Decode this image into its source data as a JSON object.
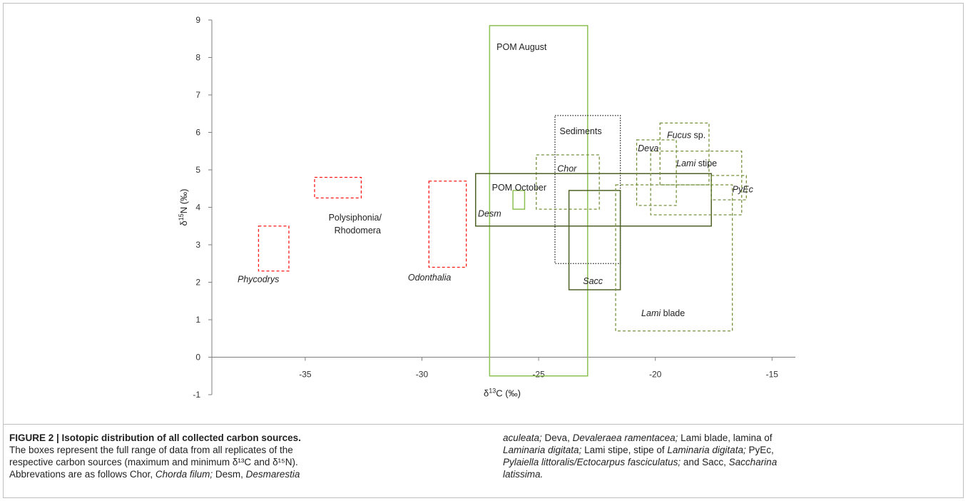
{
  "chart_data": {
    "type": "box-range",
    "xlabel": {
      "base": "δ",
      "sup": "13",
      "rest": "C (‰)"
    },
    "ylabel": {
      "base": "δ",
      "sup": "15",
      "rest": "N  (‰)"
    },
    "xlim": [
      -39,
      -14
    ],
    "ylim": [
      -1,
      9
    ],
    "xticks": [
      -35,
      -30,
      -25,
      -20,
      -15
    ],
    "yticks": [
      -1,
      0,
      1,
      2,
      3,
      4,
      5,
      6,
      7,
      8,
      9
    ],
    "colors": {
      "red": "#ff1a1a",
      "light_green": "#8cc152",
      "olive": "#76923c",
      "dark_green": "#4f6228",
      "black": "#222222"
    },
    "boxes": [
      {
        "label": "Phycodrys",
        "italic": true,
        "x": [
          -37.0,
          -35.7
        ],
        "y": [
          2.3,
          3.5
        ],
        "color": "red",
        "style": "dashed",
        "label_pos": [
          -37.9,
          2.0
        ]
      },
      {
        "label": "Polysiphonia/",
        "label2": "Rhodomera",
        "italic": false,
        "x": [
          -34.6,
          -32.6
        ],
        "y": [
          4.25,
          4.8
        ],
        "color": "red",
        "style": "dashed",
        "label_pos": [
          -34.0,
          3.65
        ]
      },
      {
        "label": "Odonthalia",
        "italic": true,
        "x": [
          -29.7,
          -28.1
        ],
        "y": [
          2.4,
          4.7
        ],
        "color": "red",
        "style": "dashed",
        "label_pos": [
          -30.6,
          2.05
        ]
      },
      {
        "label": "POM August",
        "italic": false,
        "x": [
          -27.1,
          -22.9
        ],
        "y": [
          -0.5,
          8.85
        ],
        "color": "light_green",
        "style": "solid",
        "label_pos": [
          -26.8,
          8.2
        ]
      },
      {
        "label": "POM October",
        "italic": false,
        "x": [
          -26.1,
          -25.6
        ],
        "y": [
          3.95,
          4.45
        ],
        "color": "light_green",
        "style": "solid",
        "label_pos": [
          -27.0,
          4.45
        ]
      },
      {
        "label": "Sediments",
        "italic": false,
        "x": [
          -24.3,
          -21.5
        ],
        "y": [
          2.5,
          6.45
        ],
        "color": "black",
        "style": "dotted",
        "label_pos": [
          -24.1,
          5.95
        ]
      },
      {
        "label": "Chor",
        "italic": true,
        "x": [
          -25.1,
          -22.4
        ],
        "y": [
          3.95,
          5.4
        ],
        "color": "olive",
        "style": "dashed",
        "label_pos": [
          -24.2,
          4.95
        ]
      },
      {
        "label": "Desm",
        "italic": true,
        "x": [
          -27.7,
          -17.6
        ],
        "y": [
          3.5,
          4.9
        ],
        "color": "dark_green",
        "style": "solid",
        "label_pos": [
          -27.6,
          3.75
        ]
      },
      {
        "label": "Sacc",
        "italic": true,
        "x": [
          -23.7,
          -21.5
        ],
        "y": [
          1.8,
          4.45
        ],
        "color": "dark_green",
        "style": "solid",
        "label_pos": [
          -23.1,
          1.95
        ]
      },
      {
        "label": "Lami blade",
        "italic_part": "Lami",
        "rest": " blade",
        "x": [
          -21.7,
          -16.7
        ],
        "y": [
          0.7,
          4.6
        ],
        "color": "olive",
        "style": "dashed",
        "label_pos": [
          -20.6,
          1.1
        ]
      },
      {
        "label": "Deva",
        "italic": true,
        "x": [
          -20.8,
          -19.1
        ],
        "y": [
          4.05,
          5.8
        ],
        "color": "olive",
        "style": "dashed",
        "label_pos": [
          -20.75,
          5.5
        ]
      },
      {
        "label": "Fucus sp.",
        "italic_part": "Fucus",
        "rest": " sp.",
        "x": [
          -19.8,
          -17.7
        ],
        "y": [
          4.6,
          6.25
        ],
        "color": "olive",
        "style": "dashed",
        "label_pos": [
          -19.5,
          5.85
        ]
      },
      {
        "label": "Lami stipe",
        "italic_part": "Lami",
        "rest": " stipe",
        "x": [
          -20.2,
          -16.3
        ],
        "y": [
          3.8,
          5.5
        ],
        "color": "olive",
        "style": "dashed",
        "label_pos": [
          -19.1,
          5.1
        ]
      },
      {
        "label": "PyEc",
        "italic": true,
        "x": [
          -17.6,
          -16.1
        ],
        "y": [
          4.2,
          4.85
        ],
        "color": "olive",
        "style": "dashed",
        "label_pos": [
          -16.7,
          4.4
        ]
      }
    ]
  },
  "caption": {
    "title": "FIGURE 2 | Isotopic distribution of all collected carbon sources.",
    "left_text": [
      "The boxes represent the full range of data from all replicates of the",
      "respective carbon sources (maximum and minimum δ¹³C and δ¹⁵N).",
      "Abbrevations are as follows Chor, ",
      "Chorda filum;",
      " Desm, ",
      "Desmarestia"
    ],
    "right_text": [
      "aculeata;",
      " Deva, ",
      "Devaleraea ramentacea;",
      " Lami blade, lamina of",
      "Laminaria digitata;",
      " Lami stipe, stipe of ",
      "Laminaria digitata;",
      " PyEc,",
      "Pylaiella littoralis/Ectocarpus fasciculatus;",
      " and Sacc, ",
      "Saccharina",
      "latissima."
    ]
  }
}
